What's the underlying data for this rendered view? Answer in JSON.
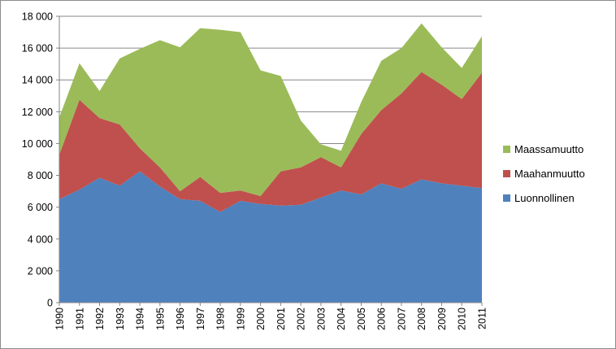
{
  "chart_data": {
    "type": "area",
    "stacked": true,
    "title": "",
    "xlabel": "",
    "ylabel": "",
    "ylim": [
      0,
      18000
    ],
    "yticks": [
      0,
      2000,
      4000,
      6000,
      8000,
      10000,
      12000,
      14000,
      16000,
      18000
    ],
    "ytick_labels": [
      "0",
      "2 000",
      "4 000",
      "6 000",
      "8 000",
      "10 000",
      "12 000",
      "14 000",
      "16 000",
      "18 000"
    ],
    "grid": "horizontal",
    "legend_position": "right",
    "x": [
      "1990",
      "1991",
      "1992",
      "1993",
      "1994",
      "1995",
      "1996",
      "1997",
      "1998",
      "1999",
      "2000",
      "2001",
      "2002",
      "2003",
      "2004",
      "2005",
      "2006",
      "2007",
      "2008",
      "2009",
      "2010",
      "2011"
    ],
    "series": [
      {
        "name": "Luonnollinen",
        "color": "#4f81bd",
        "values": [
          6500,
          7100,
          7850,
          7350,
          8250,
          7300,
          6500,
          6400,
          5700,
          6400,
          6200,
          6100,
          6150,
          6600,
          7050,
          6800,
          7500,
          7150,
          7750,
          7500,
          7350,
          7200
        ]
      },
      {
        "name": "Maahanmuutto",
        "color": "#c0504d",
        "values": [
          2800,
          5650,
          3750,
          3850,
          1450,
          1200,
          500,
          1500,
          1200,
          650,
          500,
          2150,
          2350,
          2550,
          1450,
          3800,
          4600,
          6000,
          6750,
          6200,
          5450,
          7250
        ]
      },
      {
        "name": "Maassamuutto",
        "color": "#9bbb59",
        "values": [
          2350,
          2300,
          1700,
          4150,
          6250,
          8000,
          9050,
          9350,
          10250,
          9950,
          7900,
          6000,
          2950,
          800,
          1050,
          2000,
          3100,
          2850,
          3050,
          2350,
          1950,
          2300
        ]
      }
    ]
  }
}
